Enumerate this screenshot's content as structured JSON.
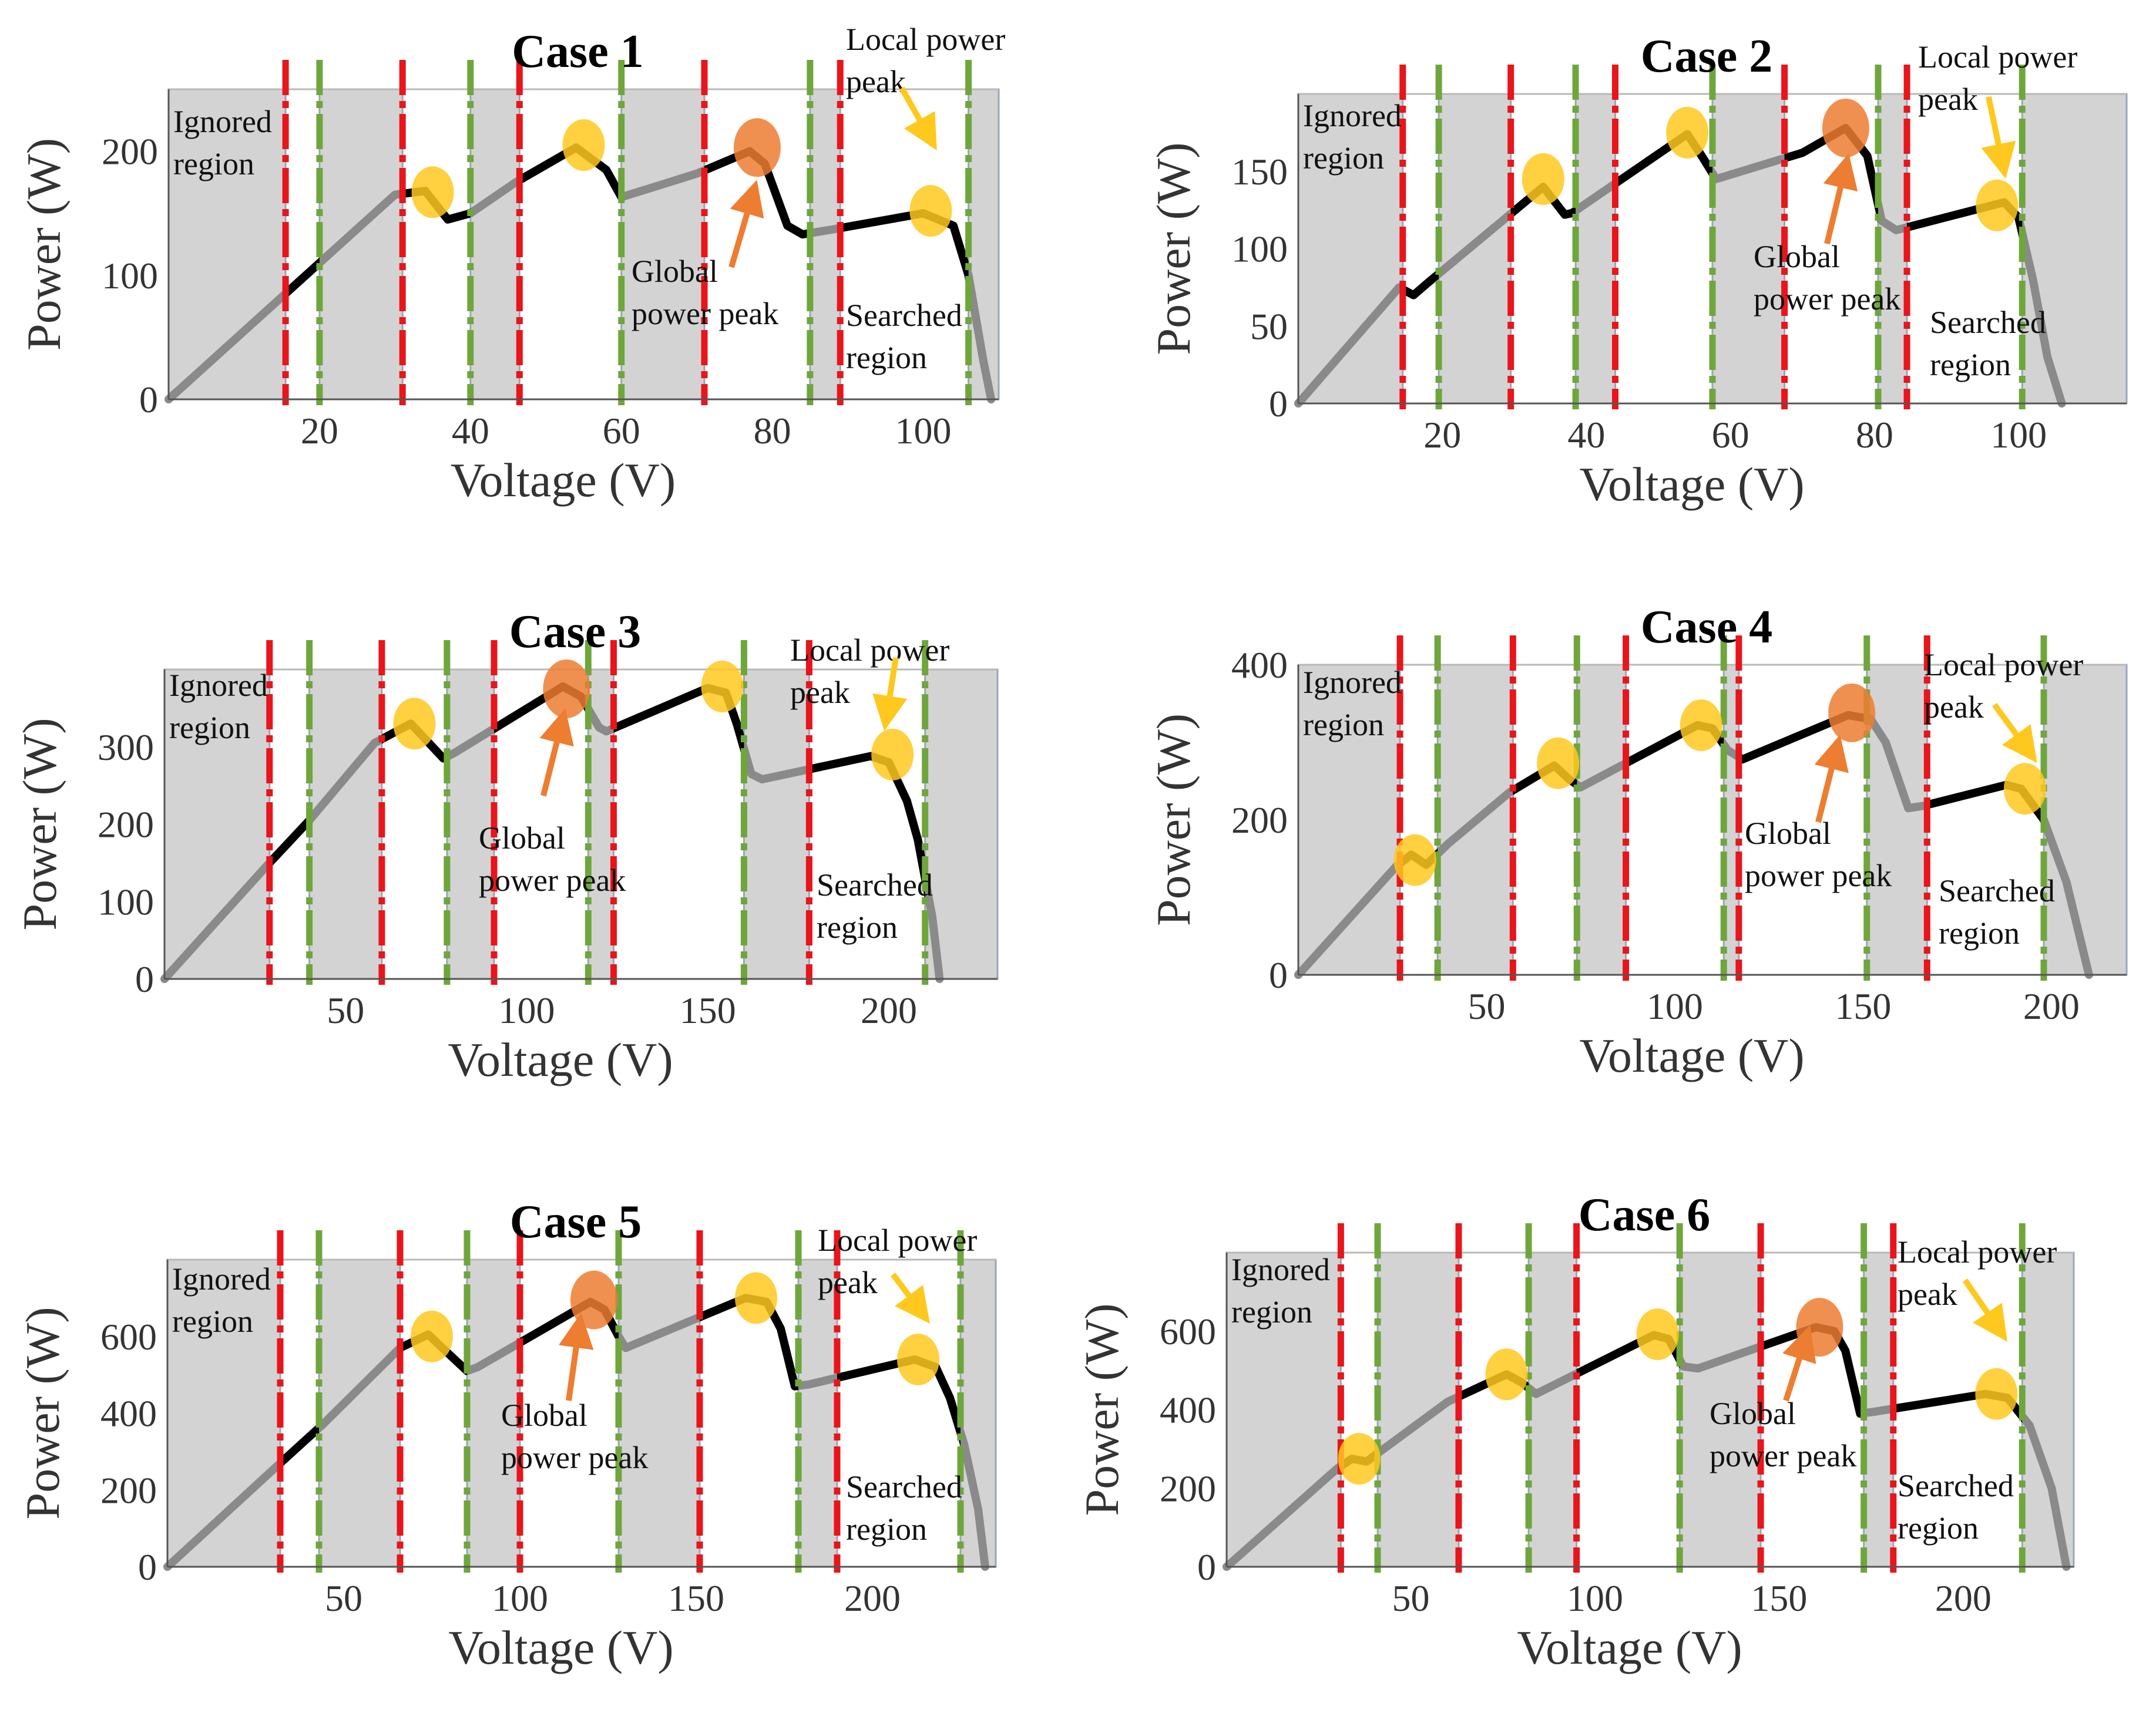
{
  "figure": {
    "colors": {
      "shaded": "#d3d3d3",
      "frame": "#9aa7b8",
      "red_line": "#e8151b",
      "green_line": "#6fa63c",
      "searched_curve": "#000000",
      "ignored_curve": "#8a8a8a",
      "local_peak": "#ffc81e",
      "global_peak": "#ed7d31"
    },
    "icons": {
      "local_peak": "yellow-circle-marker",
      "global_peak": "orange-circle-marker",
      "arrow": "arrow-icon"
    }
  },
  "chart_data": [
    {
      "type": "line",
      "title": "Case 1",
      "xlabel": "Voltage (V)",
      "ylabel": "Power (W)",
      "xlim": [
        0,
        110
      ],
      "ylim": [
        0,
        250
      ],
      "xticks": [
        20,
        40,
        60,
        80,
        100
      ],
      "yticks": [
        0,
        100,
        200
      ],
      "curve": [
        [
          0,
          0
        ],
        [
          16,
          88
        ],
        [
          30,
          165
        ],
        [
          34,
          168
        ],
        [
          37,
          145
        ],
        [
          40,
          150
        ],
        [
          46,
          175
        ],
        [
          54,
          203
        ],
        [
          58,
          185
        ],
        [
          60,
          163
        ],
        [
          70,
          182
        ],
        [
          77,
          200
        ],
        [
          79,
          190
        ],
        [
          82,
          140
        ],
        [
          84,
          133
        ],
        [
          88,
          137
        ],
        [
          100,
          150
        ],
        [
          104,
          140
        ],
        [
          106,
          100
        ],
        [
          108,
          30
        ],
        [
          109,
          0
        ]
      ],
      "red_lines": [
        15.5,
        31,
        46.5,
        71,
        89
      ],
      "green_lines": [
        20,
        40,
        60,
        85,
        106
      ],
      "shaded_regions": [
        [
          0,
          15.5
        ],
        [
          20,
          31
        ],
        [
          40,
          46.5
        ],
        [
          60,
          71
        ],
        [
          85,
          89
        ],
        [
          106,
          110
        ]
      ],
      "local_peaks": [
        [
          35,
          167
        ],
        [
          55,
          205
        ],
        [
          101,
          152
        ]
      ],
      "global_peak": [
        78,
        203
      ],
      "annotations": [
        {
          "text": "Ignored region",
          "lines": [
            "Ignored",
            "region"
          ]
        },
        {
          "text": "Global power peak",
          "lines": [
            "Global",
            "power peak"
          ]
        },
        {
          "text": "Local power peak",
          "lines": [
            "Local power",
            "peak"
          ]
        },
        {
          "text": "Searched region",
          "lines": [
            "Searched",
            "region"
          ]
        }
      ]
    },
    {
      "type": "line",
      "title": "Case 2",
      "xlabel": "Voltage (V)",
      "ylabel": "Power (W)",
      "xlim": [
        0,
        115
      ],
      "ylim": [
        0,
        200
      ],
      "xticks": [
        20,
        40,
        60,
        80,
        100
      ],
      "yticks": [
        0,
        50,
        100,
        150
      ],
      "curve": [
        [
          0,
          0
        ],
        [
          14,
          75
        ],
        [
          16,
          70
        ],
        [
          18,
          78
        ],
        [
          34,
          140
        ],
        [
          37,
          122
        ],
        [
          38,
          123
        ],
        [
          54,
          174
        ],
        [
          56,
          160
        ],
        [
          58,
          145
        ],
        [
          70,
          162
        ],
        [
          76,
          178
        ],
        [
          79,
          160
        ],
        [
          81,
          118
        ],
        [
          83,
          112
        ],
        [
          98,
          130
        ],
        [
          100,
          120
        ],
        [
          102,
          80
        ],
        [
          104,
          30
        ],
        [
          106,
          0
        ]
      ],
      "red_lines": [
        14.5,
        29.5,
        44,
        67.5,
        84.5
      ],
      "green_lines": [
        19.5,
        38.5,
        57.5,
        80.5,
        100.5
      ],
      "shaded_regions": [
        [
          0,
          14.5
        ],
        [
          19.5,
          29.5
        ],
        [
          38.5,
          44
        ],
        [
          57.5,
          67.5
        ],
        [
          80.5,
          84.5
        ],
        [
          100.5,
          115
        ]
      ],
      "local_peaks": [
        [
          34,
          145
        ],
        [
          54,
          175
        ],
        [
          97,
          128
        ]
      ],
      "global_peak": [
        76,
        178
      ],
      "annotations": [
        {
          "text": "Ignored region",
          "lines": [
            "Ignored",
            "region"
          ]
        },
        {
          "text": "Global power peak",
          "lines": [
            "Global",
            "power peak"
          ]
        },
        {
          "text": "Local power peak",
          "lines": [
            "Local power",
            "peak"
          ]
        },
        {
          "text": "Searched region",
          "lines": [
            "Searched",
            "region"
          ]
        }
      ]
    },
    {
      "type": "line",
      "title": "Case 3",
      "xlabel": "Voltage (V)",
      "ylabel": "Power (W)",
      "xlim": [
        0,
        230
      ],
      "ylim": [
        0,
        400
      ],
      "xticks": [
        50,
        100,
        150,
        200
      ],
      "yticks": [
        0,
        100,
        200,
        300
      ],
      "curve": [
        [
          0,
          0
        ],
        [
          28,
          145
        ],
        [
          40,
          205
        ],
        [
          58,
          305
        ],
        [
          68,
          330
        ],
        [
          72,
          310
        ],
        [
          77,
          285
        ],
        [
          80,
          292
        ],
        [
          110,
          378
        ],
        [
          115,
          365
        ],
        [
          120,
          325
        ],
        [
          122,
          320
        ],
        [
          150,
          376
        ],
        [
          155,
          370
        ],
        [
          158,
          330
        ],
        [
          162,
          265
        ],
        [
          165,
          258
        ],
        [
          175,
          268
        ],
        [
          195,
          288
        ],
        [
          200,
          280
        ],
        [
          205,
          230
        ],
        [
          208,
          180
        ],
        [
          212,
          80
        ],
        [
          214,
          0
        ]
      ],
      "red_lines": [
        29,
        60,
        91,
        124,
        178
      ],
      "green_lines": [
        40,
        78,
        117,
        160,
        210
      ],
      "shaded_regions": [
        [
          0,
          29
        ],
        [
          40,
          60
        ],
        [
          78,
          91
        ],
        [
          117,
          124
        ],
        [
          160,
          178
        ],
        [
          210,
          230
        ]
      ],
      "local_peaks": [
        [
          69,
          330
        ],
        [
          154,
          378
        ],
        [
          201,
          290
        ]
      ],
      "global_peak": [
        111,
        375
      ],
      "annotations": [
        {
          "text": "Ignored region",
          "lines": [
            "Ignored",
            "region"
          ]
        },
        {
          "text": "Global power peak",
          "lines": [
            "Global",
            "power peak"
          ]
        },
        {
          "text": "Local power peak",
          "lines": [
            "Local power",
            "peak"
          ]
        },
        {
          "text": "Searched region",
          "lines": [
            "Searched",
            "region"
          ]
        }
      ]
    },
    {
      "type": "line",
      "title": "Case 4",
      "xlabel": "Voltage (V)",
      "ylabel": "Power (W)",
      "xlim": [
        0,
        220
      ],
      "ylim": [
        0,
        400
      ],
      "xticks": [
        50,
        100,
        150,
        200
      ],
      "yticks": [
        0,
        200,
        400
      ],
      "curve": [
        [
          0,
          0
        ],
        [
          26,
          140
        ],
        [
          30,
          155
        ],
        [
          34,
          142
        ],
        [
          40,
          170
        ],
        [
          56,
          235
        ],
        [
          68,
          270
        ],
        [
          72,
          252
        ],
        [
          75,
          242
        ],
        [
          106,
          322
        ],
        [
          110,
          318
        ],
        [
          114,
          290
        ],
        [
          118,
          278
        ],
        [
          146,
          335
        ],
        [
          152,
          330
        ],
        [
          156,
          300
        ],
        [
          162,
          215
        ],
        [
          166,
          218
        ],
        [
          188,
          245
        ],
        [
          192,
          240
        ],
        [
          198,
          200
        ],
        [
          204,
          120
        ],
        [
          210,
          0
        ]
      ],
      "red_lines": [
        27,
        57,
        87,
        117,
        167
      ],
      "green_lines": [
        37,
        74,
        113,
        151,
        198
      ],
      "shaded_regions": [
        [
          0,
          27
        ],
        [
          37,
          57
        ],
        [
          74,
          87
        ],
        [
          113,
          117
        ],
        [
          151,
          167
        ],
        [
          198,
          220
        ]
      ],
      "local_peaks": [
        [
          31,
          148
        ],
        [
          69,
          273
        ],
        [
          107,
          322
        ],
        [
          193,
          240
        ]
      ],
      "global_peak": [
        147,
        338
      ],
      "annotations": [
        {
          "text": "Ignored region",
          "lines": [
            "Ignored",
            "region"
          ]
        },
        {
          "text": "Global power peak",
          "lines": [
            "Global",
            "power peak"
          ]
        },
        {
          "text": "Local power peak",
          "lines": [
            "Local power",
            "peak"
          ]
        },
        {
          "text": "Searched region",
          "lines": [
            "Searched",
            "region"
          ]
        }
      ]
    },
    {
      "type": "line",
      "title": "Case 5",
      "xlabel": "Voltage (V)",
      "ylabel": "Power (W)",
      "xlim": [
        0,
        235
      ],
      "ylim": [
        0,
        800
      ],
      "xticks": [
        50,
        100,
        150,
        200
      ],
      "yticks": [
        0,
        200,
        400,
        600
      ],
      "curve": [
        [
          0,
          0
        ],
        [
          32,
          270
        ],
        [
          44,
          370
        ],
        [
          66,
          570
        ],
        [
          74,
          605
        ],
        [
          78,
          570
        ],
        [
          85,
          510
        ],
        [
          88,
          520
        ],
        [
          120,
          690
        ],
        [
          124,
          670
        ],
        [
          128,
          600
        ],
        [
          130,
          570
        ],
        [
          164,
          700
        ],
        [
          170,
          690
        ],
        [
          174,
          620
        ],
        [
          178,
          470
        ],
        [
          182,
          475
        ],
        [
          212,
          540
        ],
        [
          218,
          520
        ],
        [
          222,
          440
        ],
        [
          226,
          320
        ],
        [
          230,
          150
        ],
        [
          232,
          0
        ]
      ],
      "red_lines": [
        32,
        66,
        100,
        151,
        190
      ],
      "green_lines": [
        43,
        85,
        128,
        179,
        225
      ],
      "shaded_regions": [
        [
          0,
          32
        ],
        [
          43,
          66
        ],
        [
          85,
          100
        ],
        [
          128,
          151
        ],
        [
          179,
          190
        ],
        [
          225,
          235
        ]
      ],
      "local_peaks": [
        [
          75,
          600
        ],
        [
          167,
          700
        ],
        [
          213,
          540
        ]
      ],
      "global_peak": [
        121,
        695
      ],
      "annotations": [
        {
          "text": "Ignored region",
          "lines": [
            "Ignored",
            "region"
          ]
        },
        {
          "text": "Global power peak",
          "lines": [
            "Global",
            "power peak"
          ]
        },
        {
          "text": "Local power peak",
          "lines": [
            "Local power",
            "peak"
          ]
        },
        {
          "text": "Searched region",
          "lines": [
            "Searched",
            "region"
          ]
        }
      ]
    },
    {
      "type": "line",
      "title": "Case 6",
      "xlabel": "Voltage (V)",
      "ylabel": "Power (W)",
      "xlim": [
        0,
        230
      ],
      "ylim": [
        0,
        800
      ],
      "xticks": [
        50,
        100,
        150,
        200
      ],
      "yticks": [
        0,
        200,
        400,
        600
      ],
      "curve": [
        [
          0,
          0
        ],
        [
          30,
          250
        ],
        [
          34,
          275
        ],
        [
          38,
          268
        ],
        [
          60,
          420
        ],
        [
          76,
          490
        ],
        [
          80,
          470
        ],
        [
          84,
          440
        ],
        [
          116,
          590
        ],
        [
          120,
          580
        ],
        [
          124,
          510
        ],
        [
          128,
          505
        ],
        [
          160,
          610
        ],
        [
          165,
          600
        ],
        [
          168,
          550
        ],
        [
          172,
          390
        ],
        [
          176,
          395
        ],
        [
          206,
          440
        ],
        [
          212,
          430
        ],
        [
          218,
          360
        ],
        [
          224,
          200
        ],
        [
          228,
          0
        ]
      ],
      "red_lines": [
        31,
        63,
        95,
        145,
        181
      ],
      "green_lines": [
        41,
        82,
        123,
        173,
        216
      ],
      "shaded_regions": [
        [
          0,
          31
        ],
        [
          41,
          63
        ],
        [
          82,
          95
        ],
        [
          123,
          145
        ],
        [
          173,
          181
        ],
        [
          216,
          230
        ]
      ],
      "local_peaks": [
        [
          36,
          275
        ],
        [
          76,
          490
        ],
        [
          117,
          592
        ],
        [
          209,
          440
        ]
      ],
      "global_peak": [
        161,
        610
      ],
      "annotations": [
        {
          "text": "Ignored region",
          "lines": [
            "Ignored",
            "region"
          ]
        },
        {
          "text": "Global power peak",
          "lines": [
            "Global",
            "power peak"
          ]
        },
        {
          "text": "Local power peak",
          "lines": [
            "Local power",
            "peak"
          ]
        },
        {
          "text": "Searched region",
          "lines": [
            "Searched",
            "region"
          ]
        }
      ]
    }
  ]
}
